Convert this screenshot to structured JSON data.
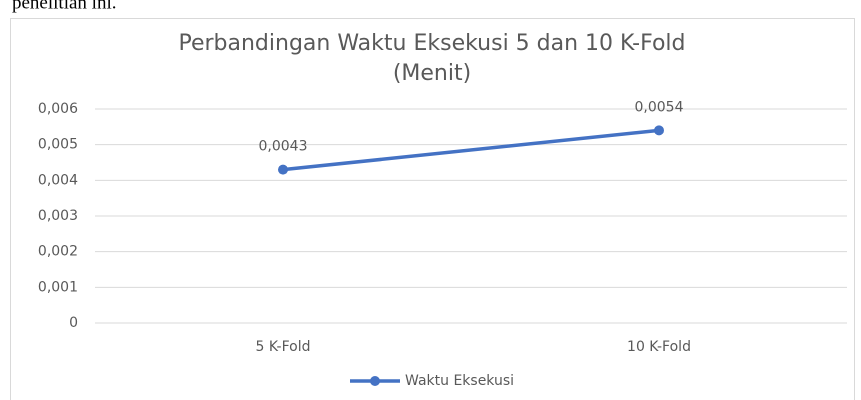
{
  "context_text": "penelitian ini.",
  "chart_data": {
    "type": "line",
    "title": [
      "Perbandingan Waktu Eksekusi 5 dan 10 K-Fold",
      "(Menit)"
    ],
    "categories": [
      "5 K-Fold",
      "10 K-Fold"
    ],
    "series": [
      {
        "name": "Waktu Eksekusi",
        "color": "#4472c4",
        "values": [
          0.0043,
          0.0054
        ],
        "value_labels": [
          "0,0043",
          "0,0054"
        ]
      }
    ],
    "ylim": [
      0,
      0.006
    ],
    "yticks": [
      0,
      {
        "value": 0.001,
        "label": "0,001"
      },
      {
        "value": 0.002,
        "label": "0,002"
      },
      {
        "value": 0.003,
        "label": "0,003"
      },
      {
        "value": 0.004,
        "label": "0,004"
      },
      {
        "value": 0.005,
        "label": "0,005"
      },
      {
        "value": 0.006,
        "label": "0,006"
      }
    ],
    "grid": true,
    "legend": "bottom"
  }
}
